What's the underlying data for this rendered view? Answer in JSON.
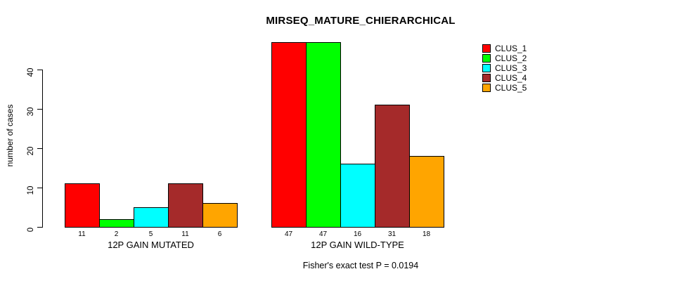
{
  "chart_data": {
    "type": "bar",
    "title": "MIRSEQ_MATURE_CHIERARCHICAL",
    "subtitle": "Fisher's exact test P = 0.0194",
    "ylabel": "number of cases",
    "xlabel": "",
    "ylim": [
      0,
      47
    ],
    "yticks": [
      0,
      10,
      20,
      30,
      40
    ],
    "grid": false,
    "legend_position": "top-right",
    "bar_value_labels_shown": true,
    "categories": [
      "12P GAIN MUTATED",
      "12P GAIN WILD-TYPE"
    ],
    "series": [
      {
        "name": "CLUS_1",
        "color": "#FF0000",
        "values": [
          11,
          47
        ]
      },
      {
        "name": "CLUS_2",
        "color": "#00FF00",
        "values": [
          2,
          47
        ]
      },
      {
        "name": "CLUS_3",
        "color": "#00FFFF",
        "values": [
          5,
          16
        ]
      },
      {
        "name": "CLUS_4",
        "color": "#A52A2A",
        "values": [
          11,
          31
        ]
      },
      {
        "name": "CLUS_5",
        "color": "#FFA500",
        "values": [
          6,
          18
        ]
      }
    ],
    "colors": {
      "bar_border": "#000000",
      "axis": "#000000",
      "text": "#000000",
      "background": "#FFFFFF"
    }
  }
}
